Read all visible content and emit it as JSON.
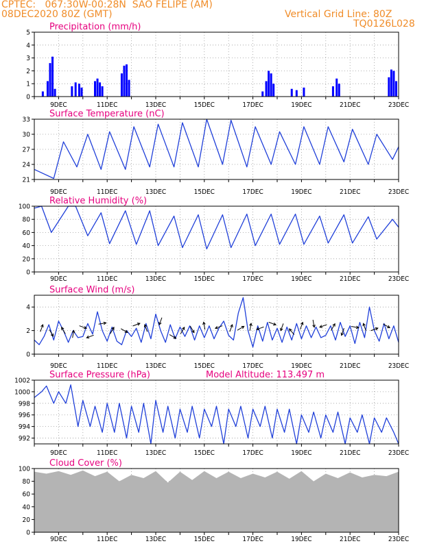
{
  "header": {
    "line1_left": "CPTEC:   067:30W-00:28N  SAO FELIPE (AM)",
    "line2_left": "08DEC2020 80Z (GMT)",
    "line2_right": "Vertical Grid Line: 80Z",
    "line3_right": "TQ0126L028"
  },
  "x_axis": {
    "labels": [
      "9DEC",
      "11DEC",
      "13DEC",
      "15DEC",
      "17DEC",
      "19DEC",
      "21DEC",
      "23DEC"
    ]
  },
  "chart_data": [
    {
      "type": "bar",
      "title": "Precipitation (mm/h)",
      "ylim": [
        0,
        5
      ],
      "yticks": [
        "0",
        "1",
        "2",
        "3",
        "4",
        "5"
      ],
      "color": "#0000ff",
      "x_day_start": 8.0,
      "x_day_end": 23.0,
      "grid": true,
      "events": [
        {
          "day": 8.35,
          "value": 0.4
        },
        {
          "day": 8.55,
          "value": 1.2
        },
        {
          "day": 8.65,
          "value": 2.6
        },
        {
          "day": 8.75,
          "value": 3.1
        },
        {
          "day": 8.85,
          "value": 0.6
        },
        {
          "day": 9.55,
          "value": 0.8
        },
        {
          "day": 9.7,
          "value": 1.1
        },
        {
          "day": 9.85,
          "value": 1.0
        },
        {
          "day": 9.95,
          "value": 0.7
        },
        {
          "day": 10.5,
          "value": 1.2
        },
        {
          "day": 10.6,
          "value": 1.4
        },
        {
          "day": 10.7,
          "value": 1.1
        },
        {
          "day": 10.8,
          "value": 0.8
        },
        {
          "day": 11.6,
          "value": 1.8
        },
        {
          "day": 11.7,
          "value": 2.4
        },
        {
          "day": 11.8,
          "value": 2.5
        },
        {
          "day": 11.9,
          "value": 1.3
        },
        {
          "day": 17.4,
          "value": 0.4
        },
        {
          "day": 17.55,
          "value": 1.2
        },
        {
          "day": 17.65,
          "value": 2.0
        },
        {
          "day": 17.75,
          "value": 1.8
        },
        {
          "day": 17.85,
          "value": 1.0
        },
        {
          "day": 18.6,
          "value": 0.6
        },
        {
          "day": 18.8,
          "value": 0.5
        },
        {
          "day": 19.1,
          "value": 0.7
        },
        {
          "day": 20.3,
          "value": 0.8
        },
        {
          "day": 20.45,
          "value": 1.4
        },
        {
          "day": 20.55,
          "value": 1.0
        },
        {
          "day": 22.6,
          "value": 1.5
        },
        {
          "day": 22.7,
          "value": 2.1
        },
        {
          "day": 22.8,
          "value": 2.0
        },
        {
          "day": 22.9,
          "value": 1.2
        }
      ]
    },
    {
      "type": "line",
      "title": "Surface Temperature (nC)",
      "ylim": [
        21,
        33
      ],
      "yticks": [
        "21",
        "24",
        "27",
        "30",
        "33"
      ],
      "color": "#1f3fd9",
      "x_day_start": 8.0,
      "x_day_end": 23.0,
      "grid": true,
      "days": [
        8.0,
        8.8,
        9.2,
        9.75,
        10.2,
        10.75,
        11.1,
        11.75,
        12.1,
        12.75,
        13.1,
        13.75,
        14.1,
        14.75,
        15.1,
        15.75,
        16.1,
        16.75,
        17.1,
        17.75,
        18.1,
        18.75,
        19.1,
        19.75,
        20.1,
        20.75,
        21.1,
        21.75,
        22.1,
        22.75,
        23.0
      ],
      "values": [
        23,
        21.2,
        28.5,
        23.5,
        30,
        23,
        30.5,
        23,
        31.5,
        23.5,
        32,
        23.5,
        32.3,
        23.5,
        33,
        24,
        32.8,
        23.5,
        31.5,
        24,
        30.5,
        24,
        31.5,
        24,
        31.5,
        24.5,
        31,
        24,
        30,
        25,
        27.5
      ]
    },
    {
      "type": "line",
      "title": "Relative Humidity (%)",
      "ylim": [
        0,
        100
      ],
      "yticks": [
        "0",
        "20",
        "40",
        "60",
        "80",
        "100"
      ],
      "color": "#1f3fd9",
      "x_day_start": 8.0,
      "x_day_end": 23.0,
      "grid": true,
      "days": [
        8.0,
        8.3,
        8.7,
        9.4,
        9.7,
        10.2,
        10.75,
        11.1,
        11.75,
        12.2,
        12.75,
        13.1,
        13.75,
        14.1,
        14.75,
        15.1,
        15.75,
        16.1,
        16.75,
        17.1,
        17.75,
        18.1,
        18.75,
        19.1,
        19.75,
        20.1,
        20.75,
        21.1,
        21.75,
        22.1,
        22.75,
        23.0
      ],
      "values": [
        97,
        100,
        60,
        100,
        100,
        55,
        90,
        43,
        93,
        42,
        93,
        40,
        85,
        37,
        87,
        35,
        87,
        37,
        88,
        40,
        88,
        42,
        88,
        42,
        85,
        44,
        87,
        44,
        84,
        50,
        80,
        68
      ]
    },
    {
      "type": "line",
      "title": "Surface Wind (m/s)",
      "ylim": [
        0,
        5
      ],
      "yticks": [
        "0",
        "2",
        "4"
      ],
      "color": "#1f3fd9",
      "x_day_start": 8.0,
      "x_day_end": 23.0,
      "grid": true,
      "days": [
        8.0,
        8.2,
        8.4,
        8.6,
        8.8,
        9.0,
        9.2,
        9.4,
        9.6,
        9.8,
        10.0,
        10.2,
        10.4,
        10.6,
        10.8,
        11.0,
        11.2,
        11.4,
        11.6,
        11.8,
        12.0,
        12.2,
        12.4,
        12.6,
        12.8,
        13.0,
        13.2,
        13.4,
        13.6,
        13.8,
        14.0,
        14.2,
        14.4,
        14.6,
        14.8,
        15.0,
        15.2,
        15.4,
        15.6,
        15.8,
        16.0,
        16.2,
        16.4,
        16.6,
        16.8,
        17.0,
        17.2,
        17.4,
        17.6,
        17.8,
        18.0,
        18.2,
        18.4,
        18.6,
        18.8,
        19.0,
        19.2,
        19.4,
        19.6,
        19.8,
        20.0,
        20.2,
        20.4,
        20.6,
        20.8,
        21.0,
        21.2,
        21.4,
        21.6,
        21.8,
        22.0,
        22.2,
        22.4,
        22.6,
        22.8,
        23.0
      ],
      "values": [
        1.2,
        0.8,
        1.5,
        2.5,
        1.2,
        2.8,
        2.0,
        1.0,
        2.0,
        1.4,
        1.5,
        2.6,
        1.7,
        3.6,
        2.0,
        1.1,
        2.3,
        1.1,
        0.8,
        2.0,
        1.5,
        2.2,
        1.0,
        2.6,
        1.3,
        3.4,
        2.0,
        1.0,
        2.5,
        1.3,
        2.3,
        1.5,
        2.4,
        1.2,
        2.4,
        1.4,
        2.4,
        1.3,
        2.2,
        2.8,
        1.6,
        1.2,
        3.5,
        4.8,
        2.0,
        0.6,
        2.4,
        1.1,
        2.7,
        1.2,
        2.2,
        1.0,
        2.3,
        1.2,
        2.6,
        1.3,
        2.4,
        1.4,
        2.3,
        1.4,
        1.6,
        2.4,
        1.2,
        2.7,
        1.5,
        2.4,
        0.9,
        2.7,
        1.4,
        4.0,
        2.0,
        1.1,
        2.6,
        1.3,
        2.4,
        1.0
      ],
      "arrow_days": [
        8.3,
        8.7,
        9.2,
        9.6,
        10.0,
        10.3,
        10.8,
        11.2,
        11.7,
        12.2,
        12.6,
        13.2,
        13.7,
        14.1,
        14.5,
        15.0,
        15.6,
        16.1,
        16.5,
        16.9,
        17.3,
        17.8,
        18.2,
        18.6,
        19.0,
        19.5,
        19.9,
        20.3,
        20.7,
        21.2,
        21.6,
        22.0,
        22.5
      ],
      "arrow_values": [
        2.2,
        1.8,
        2.0,
        1.7,
        2.3,
        1.5,
        2.6,
        2.0,
        2.0,
        2.5,
        2.2,
        2.8,
        1.5,
        2.0,
        2.1,
        2.4,
        2.3,
        2.2,
        2.2,
        2.3,
        2.2,
        2.6,
        2.3,
        1.9,
        2.4,
        2.6,
        2.4,
        2.3,
        1.9,
        2.3,
        2.3,
        2.1,
        2.4
      ],
      "arrow_directions_deg": [
        70,
        300,
        120,
        80,
        340,
        200,
        10,
        60,
        330,
        20,
        110,
        250,
        330,
        60,
        300,
        100,
        200,
        70,
        30,
        80,
        200,
        340,
        250,
        130,
        70,
        280,
        200,
        60,
        250,
        350,
        110,
        20,
        330
      ]
    },
    {
      "type": "line",
      "title": "Surface Pressure (hPa)",
      "annotation": "Model Altitude: 113.497 m",
      "ylim": [
        991,
        1002
      ],
      "yticks": [
        "992",
        "994",
        "996",
        "998",
        "1000",
        "1002"
      ],
      "color": "#1f3fd9",
      "x_day_start": 8.0,
      "x_day_end": 23.0,
      "grid": true,
      "days": [
        8.0,
        8.3,
        8.5,
        8.8,
        9.0,
        9.3,
        9.5,
        9.8,
        10.0,
        10.3,
        10.5,
        10.8,
        11.0,
        11.3,
        11.5,
        11.8,
        12.0,
        12.3,
        12.5,
        12.8,
        13.0,
        13.3,
        13.5,
        13.8,
        14.0,
        14.3,
        14.5,
        14.8,
        15.0,
        15.3,
        15.5,
        15.8,
        16.0,
        16.3,
        16.5,
        16.8,
        17.0,
        17.3,
        17.5,
        17.8,
        18.0,
        18.3,
        18.5,
        18.8,
        19.0,
        19.3,
        19.5,
        19.8,
        20.0,
        20.3,
        20.5,
        20.8,
        21.0,
        21.3,
        21.5,
        21.8,
        22.0,
        22.3,
        22.5,
        22.8,
        23.0
      ],
      "values": [
        999,
        1000,
        1001,
        998,
        1000,
        998,
        1001.2,
        994,
        998.5,
        994,
        997.5,
        993,
        998,
        993,
        998,
        992,
        997.5,
        993,
        998,
        991,
        998.5,
        993,
        997.5,
        992,
        997,
        993,
        997.5,
        992,
        997,
        994,
        997.5,
        991,
        997,
        994,
        997.5,
        992,
        997,
        994,
        997.5,
        992,
        997,
        993,
        997,
        991,
        996,
        993,
        996.5,
        992,
        996,
        993,
        996.5,
        991,
        995.5,
        993,
        996,
        991,
        995.5,
        993,
        995.5,
        993,
        991
      ]
    },
    {
      "type": "area",
      "title": "Cloud Cover (%)",
      "ylim": [
        0,
        100
      ],
      "yticks": [
        "0",
        "20",
        "40",
        "60",
        "80",
        "100"
      ],
      "color": "#b4b4b4",
      "x_day_start": 8.0,
      "x_day_end": 23.0,
      "grid": true,
      "days": [
        8.0,
        8.5,
        9.0,
        9.5,
        10.0,
        10.5,
        11.0,
        11.5,
        12.0,
        12.5,
        13.0,
        13.5,
        14.0,
        14.5,
        15.0,
        15.5,
        16.0,
        16.5,
        17.0,
        17.5,
        18.0,
        18.5,
        19.0,
        19.5,
        20.0,
        20.5,
        21.0,
        21.5,
        22.0,
        22.5,
        23.0
      ],
      "values": [
        95,
        92,
        96,
        90,
        97,
        88,
        95,
        80,
        90,
        85,
        96,
        78,
        95,
        82,
        96,
        85,
        95,
        85,
        92,
        86,
        95,
        84,
        96,
        80,
        92,
        85,
        94,
        86,
        90,
        88,
        95
      ]
    }
  ]
}
